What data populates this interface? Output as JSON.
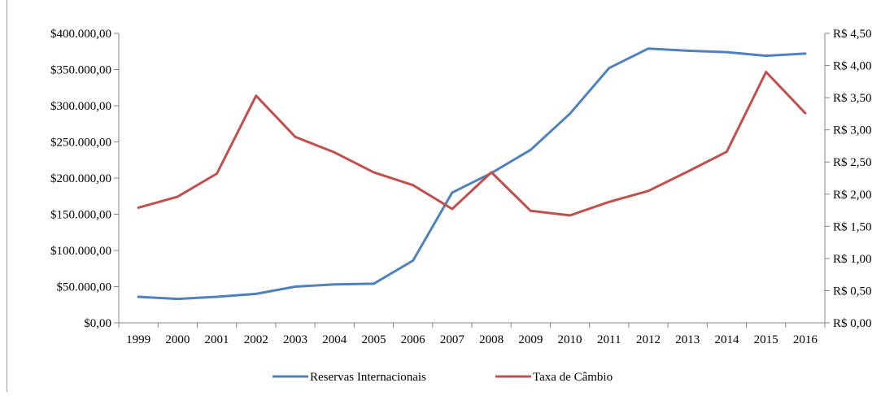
{
  "chart_data": {
    "type": "line",
    "title": "",
    "xlabel": "",
    "ylabel": "",
    "categories": [
      "1999",
      "2000",
      "2001",
      "2002",
      "2003",
      "2004",
      "2005",
      "2006",
      "2007",
      "2008",
      "2009",
      "2010",
      "2011",
      "2012",
      "2013",
      "2014",
      "2015",
      "2016"
    ],
    "y_left": {
      "lim": [
        0,
        400000
      ],
      "step": 50000,
      "ticks": [
        "$0,00",
        "$50.000,00",
        "$100.000,00",
        "$150.000,00",
        "$200.000,00",
        "$250.000,00",
        "$300.000,00",
        "$350.000,00",
        "$400.000,00"
      ]
    },
    "y_right": {
      "lim": [
        0,
        4.5
      ],
      "step": 0.5,
      "ticks": [
        "R$ 0,00",
        "R$ 0,50",
        "R$ 1,00",
        "R$ 1,50",
        "R$ 2,00",
        "R$ 2,50",
        "R$ 3,00",
        "R$ 3,50",
        "R$ 4,00",
        "R$ 4,50"
      ]
    },
    "series": [
      {
        "name": "Reservas Internacionais",
        "axis": "left",
        "color": "#4F81BD",
        "values": [
          36000,
          33000,
          36000,
          40000,
          50000,
          53000,
          54000,
          86000,
          180000,
          207000,
          239000,
          289000,
          352000,
          379000,
          376000,
          374000,
          369000,
          372000
        ]
      },
      {
        "name": "Taxa de Câmbio",
        "axis": "right",
        "color": "#C0504D",
        "values": [
          1.79,
          1.96,
          2.32,
          3.53,
          2.89,
          2.65,
          2.34,
          2.14,
          1.77,
          2.34,
          1.74,
          1.67,
          1.88,
          2.05,
          2.35,
          2.66,
          3.9,
          3.26
        ]
      }
    ],
    "grid": false,
    "legend": "bottom-center"
  }
}
